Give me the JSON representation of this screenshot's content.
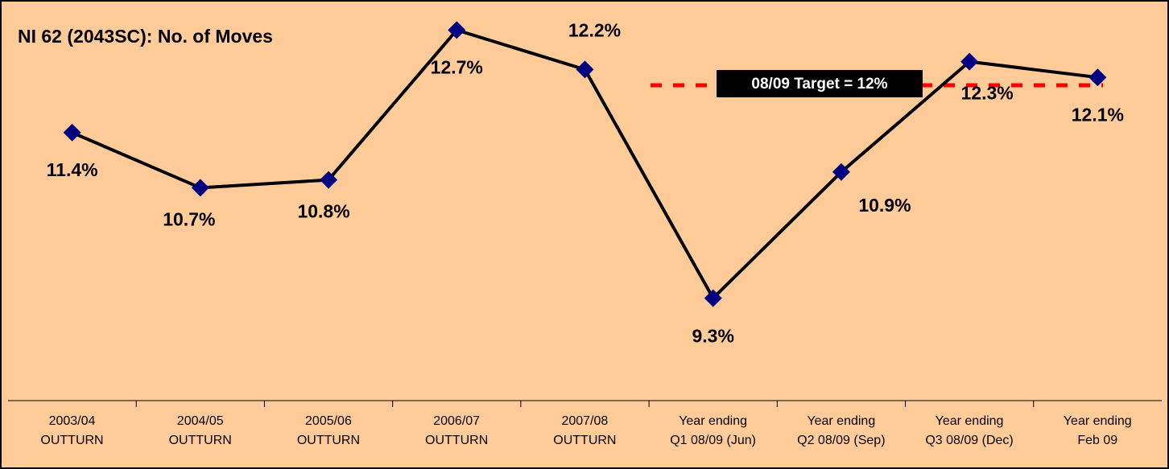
{
  "chart_data": {
    "type": "line",
    "title": "NI 62 (2043SC): No. of Moves",
    "categories": [
      "2003/04\nOUTTURN",
      "2004/05\nOUTTURN",
      "2005/06\nOUTTURN",
      "2006/07\nOUTTURN",
      "2007/08\nOUTTURN",
      "Year ending\nQ1 08/09 (Jun)",
      "Year ending\nQ2 08/09 (Sep)",
      "Year ending\nQ3 08/09 (Dec)",
      "Year ending\nFeb 09"
    ],
    "series": [
      {
        "name": "No. of Moves",
        "color": "#000000",
        "marker_color": "#000080",
        "values": [
          11.4,
          10.7,
          10.8,
          12.7,
          12.2,
          9.3,
          10.9,
          12.3,
          12.1
        ],
        "value_labels": [
          "11.4%",
          "10.7%",
          "10.8%",
          "12.7%",
          "12.2%",
          "9.3%",
          "10.9%",
          "12.3%",
          "12.1%"
        ]
      }
    ],
    "target": {
      "value": 12,
      "label": "08/09 Target = 12%",
      "color": "#ff0000"
    },
    "ylim": [
      8,
      13
    ],
    "background": "#ffcc99"
  }
}
